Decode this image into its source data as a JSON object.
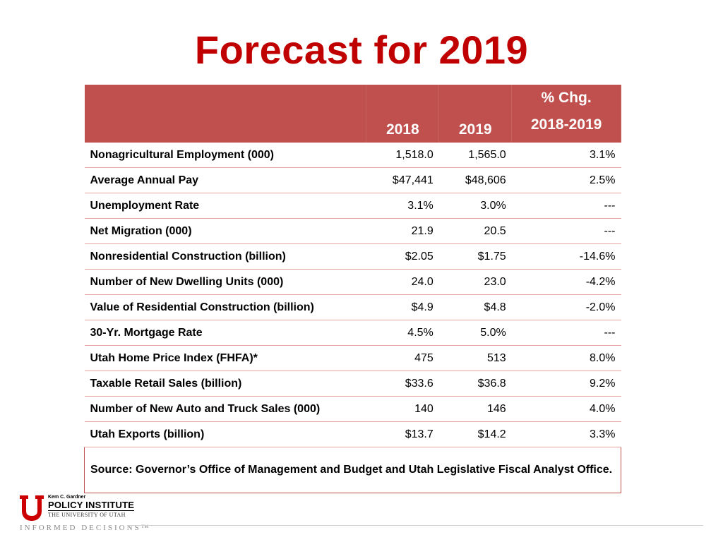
{
  "title": "Forecast for 2019",
  "table": {
    "headers": {
      "indicator": "",
      "y2018": "2018",
      "y2019": "2019",
      "chg_line1": "% Chg.",
      "chg_line2": "2018-2019"
    },
    "rows": [
      {
        "label": "Nonagricultural Employment (000)",
        "y2018": "1,518.0",
        "y2019": "1,565.0",
        "chg": "3.1%"
      },
      {
        "label": "Average Annual Pay",
        "y2018": "$47,441",
        "y2019": "$48,606",
        "chg": "2.5%"
      },
      {
        "label": "Unemployment Rate",
        "y2018": "3.1%",
        "y2019": "3.0%",
        "chg": "---"
      },
      {
        "label": "Net Migration (000)",
        "y2018": "21.9",
        "y2019": "20.5",
        "chg": "---"
      },
      {
        "label": "Nonresidential Construction (billion)",
        "y2018": "$2.05",
        "y2019": "$1.75",
        "chg": "-14.6%"
      },
      {
        "label": "Number of New Dwelling Units (000)",
        "y2018": "24.0",
        "y2019": "23.0",
        "chg": "-4.2%"
      },
      {
        "label": "Value of Residential Construction (billion)",
        "y2018": "$4.9",
        "y2019": "$4.8",
        "chg": "-2.0%"
      },
      {
        "label": "30-Yr. Mortgage Rate",
        "y2018": "4.5%",
        "y2019": "5.0%",
        "chg": "---"
      },
      {
        "label": "Utah Home Price Index (FHFA)*",
        "y2018": "475",
        "y2019": "513",
        "chg": "8.0%"
      },
      {
        "label": "Taxable Retail Sales (billion)",
        "y2018": "$33.6",
        "y2019": "$36.8",
        "chg": "9.2%"
      },
      {
        "label": "Number of New Auto and Truck Sales (000)",
        "y2018": "140",
        "y2019": "146",
        "chg": "4.0%"
      },
      {
        "label": "Utah Exports (billion)",
        "y2018": "$13.7",
        "y2019": "$14.2",
        "chg": "3.3%"
      }
    ],
    "source": "Source: Governor’s Office of Management and Budget and Utah Legislative Fiscal Analyst Office."
  },
  "logo": {
    "small": "Kem C. Gardner",
    "main": "POLICY INSTITUTE",
    "university": "THE UNIVERSITY OF UTAH",
    "tagline": "INFORMED DECISIONS™"
  },
  "colors": {
    "title": "#c00000",
    "header_bg": "#c0504d",
    "row_border": "#e8a3a1",
    "logo_red": "#cc0000"
  }
}
